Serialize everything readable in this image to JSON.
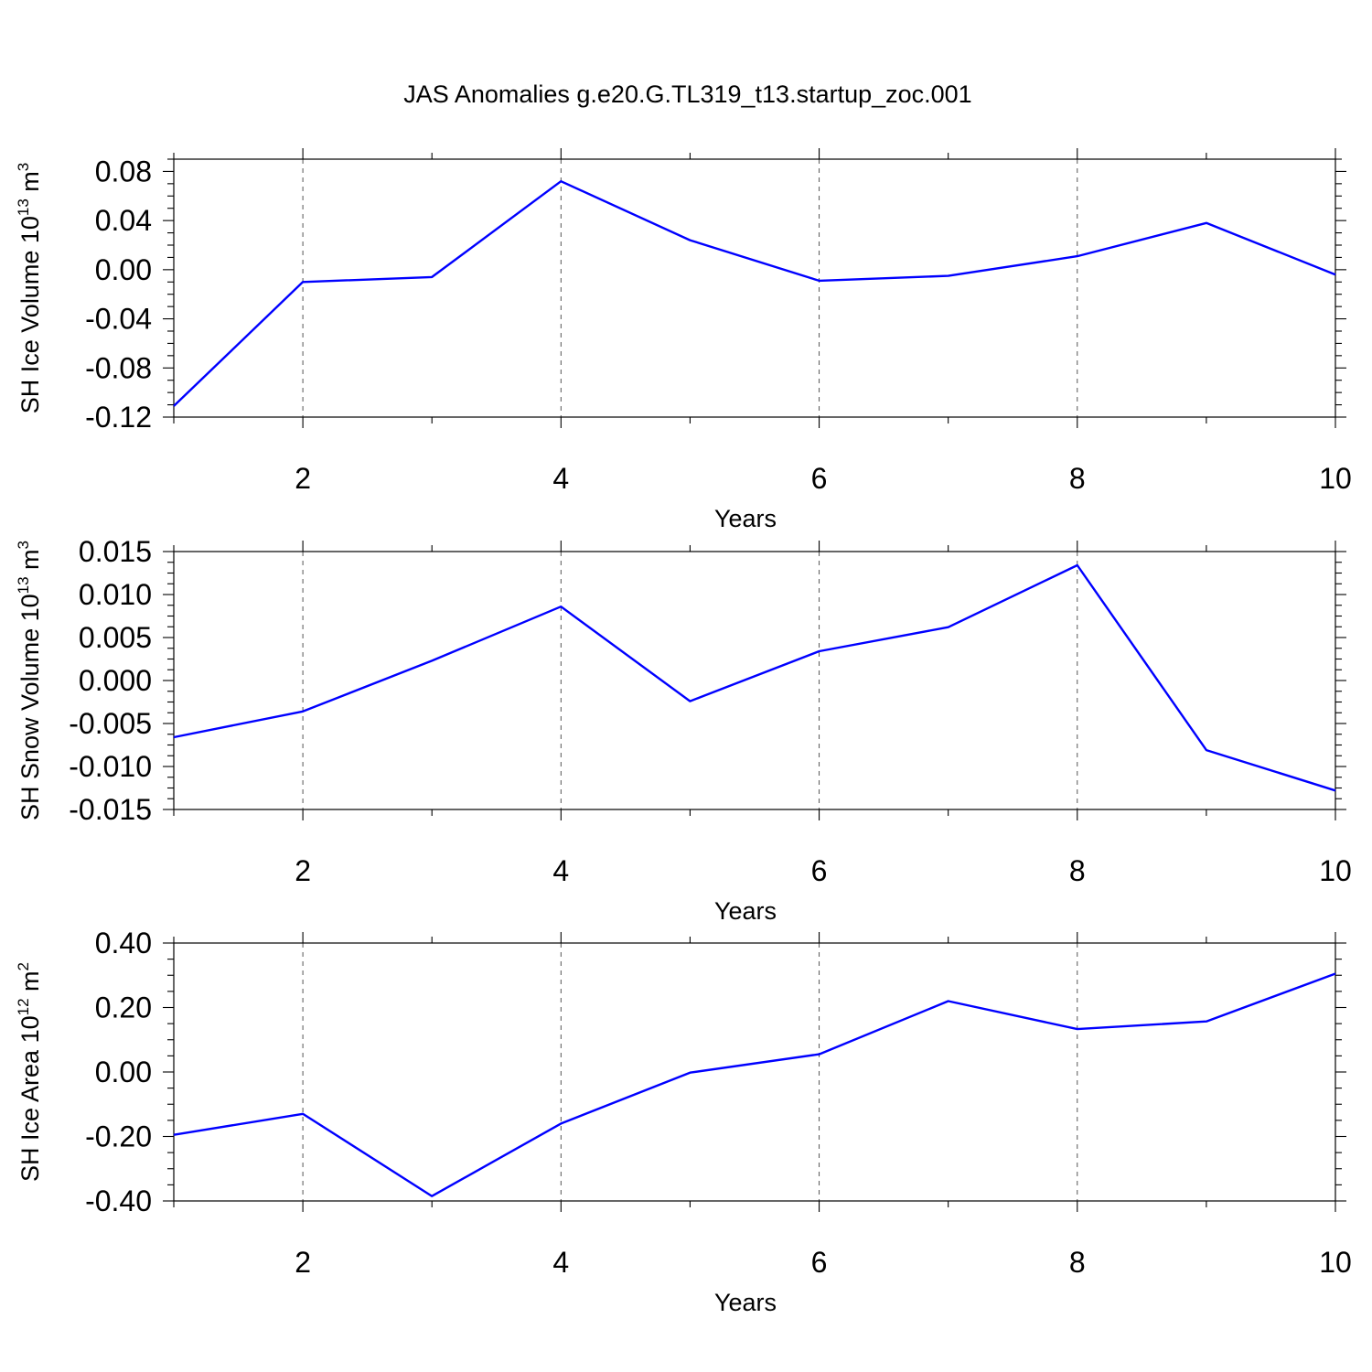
{
  "title": "JAS Anomalies g.e20.G.TL319_t13.startup_zoc.001",
  "line_color": "#0000ff",
  "chart_data": [
    {
      "type": "line",
      "title": "",
      "xlabel": "Years",
      "ylabel_main": "SH Ice Volume 10",
      "ylabel_sup": "13",
      "ylabel_unit": "m",
      "ylabel_unit_sup": "3",
      "xlim": [
        1,
        10
      ],
      "ylim": [
        -0.12,
        0.09
      ],
      "x_ticks": [
        2,
        4,
        6,
        8,
        10
      ],
      "x_tick_labels": [
        "2",
        "4",
        "6",
        "8",
        "10"
      ],
      "y_ticks": [
        -0.12,
        -0.08,
        -0.04,
        0.0,
        0.04,
        0.08
      ],
      "y_tick_labels": [
        "-0.12",
        "-0.08",
        "-0.04",
        "0.00",
        "0.04",
        "0.08"
      ],
      "grid": "vertical dashed at labeled x ticks",
      "series": [
        {
          "x": [
            1,
            2,
            3,
            4,
            5,
            6,
            7,
            8,
            9,
            10
          ],
          "values": [
            -0.111,
            -0.01,
            -0.006,
            0.072,
            0.024,
            -0.009,
            -0.005,
            0.011,
            0.038,
            -0.004
          ]
        }
      ]
    },
    {
      "type": "line",
      "title": "",
      "xlabel": "Years",
      "ylabel_main": "SH Snow Volume 10",
      "ylabel_sup": "13",
      "ylabel_unit": "m",
      "ylabel_unit_sup": "3",
      "xlim": [
        1,
        10
      ],
      "ylim": [
        -0.015,
        0.015
      ],
      "x_ticks": [
        2,
        4,
        6,
        8,
        10
      ],
      "x_tick_labels": [
        "2",
        "4",
        "6",
        "8",
        "10"
      ],
      "y_ticks": [
        -0.015,
        -0.01,
        -0.005,
        0.0,
        0.005,
        0.01,
        0.015
      ],
      "y_tick_labels": [
        "-0.015",
        "-0.010",
        "-0.005",
        "0.000",
        "0.005",
        "0.010",
        "0.015"
      ],
      "grid": "vertical dashed at labeled x ticks",
      "series": [
        {
          "x": [
            1,
            2,
            3,
            4,
            5,
            6,
            7,
            8,
            9,
            10
          ],
          "values": [
            -0.0066,
            -0.0036,
            0.0023,
            0.0086,
            -0.0024,
            0.0034,
            0.0062,
            0.0134,
            -0.0081,
            -0.0128
          ]
        }
      ]
    },
    {
      "type": "line",
      "title": "",
      "xlabel": "Years",
      "ylabel_main": "SH Ice Area 10",
      "ylabel_sup": "12",
      "ylabel_unit": "m",
      "ylabel_unit_sup": "2",
      "xlim": [
        1,
        10
      ],
      "ylim": [
        -0.4,
        0.4
      ],
      "x_ticks": [
        2,
        4,
        6,
        8,
        10
      ],
      "x_tick_labels": [
        "2",
        "4",
        "6",
        "8",
        "10"
      ],
      "y_ticks": [
        -0.4,
        -0.2,
        0.0,
        0.2,
        0.4
      ],
      "y_tick_labels": [
        "-0.40",
        "-0.20",
        "0.00",
        "0.20",
        "0.40"
      ],
      "grid": "vertical dashed at labeled x ticks",
      "series": [
        {
          "x": [
            1,
            2,
            3,
            4,
            5,
            6,
            7,
            8,
            9,
            10
          ],
          "values": [
            -0.195,
            -0.13,
            -0.385,
            -0.16,
            -0.002,
            0.055,
            0.22,
            0.133,
            0.157,
            0.305
          ]
        }
      ]
    }
  ]
}
